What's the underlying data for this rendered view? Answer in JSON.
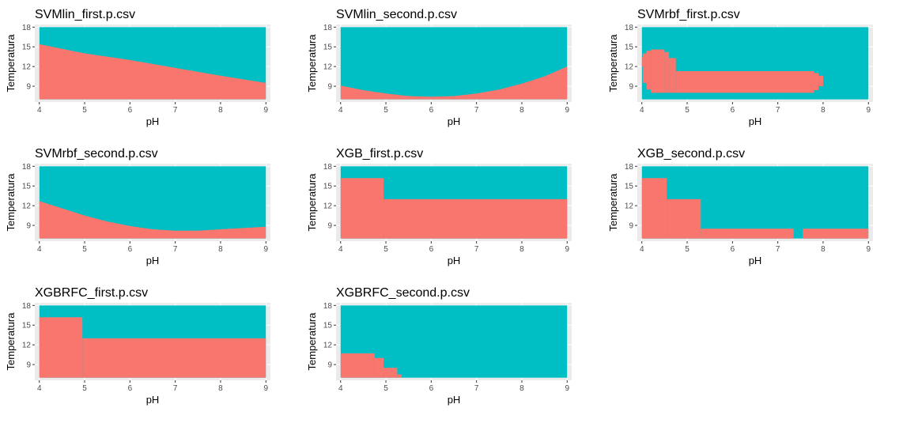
{
  "colors": {
    "class_low": "#F8766D",
    "class_high": "#00BFC4",
    "panel_bg": "#EBEBEB",
    "grid_major": "#FFFFFF",
    "text_dark": "#000000",
    "tick_text": "#4D4D4D"
  },
  "chart_data": [
    {
      "type": "heatmap",
      "title": "SVMlin_first.p.csv",
      "xlabel": "pH",
      "ylabel": "Temperatura",
      "xlim": [
        3.9,
        9.1
      ],
      "ylim": [
        6.6,
        18.4
      ],
      "data_range": {
        "x": [
          4,
          9
        ],
        "y": [
          7,
          18
        ]
      },
      "xticks": [
        4,
        5,
        6,
        7,
        8,
        9
      ],
      "yticks": [
        9,
        12,
        15,
        18
      ],
      "boundary": [
        [
          4,
          15.4
        ],
        [
          5,
          14.0
        ],
        [
          6,
          13.0
        ],
        [
          7,
          11.8
        ],
        [
          8,
          10.6
        ],
        [
          9,
          9.5
        ]
      ]
    },
    {
      "type": "heatmap",
      "title": "SVMlin_second.p.csv",
      "xlabel": "pH",
      "ylabel": "Temperatura",
      "xlim": [
        3.9,
        9.1
      ],
      "ylim": [
        6.6,
        18.4
      ],
      "data_range": {
        "x": [
          4,
          9
        ],
        "y": [
          7,
          18
        ]
      },
      "xticks": [
        4,
        5,
        6,
        7,
        8,
        9
      ],
      "yticks": [
        9,
        12,
        15,
        18
      ],
      "boundary": [
        [
          4,
          9.1
        ],
        [
          4.5,
          8.4
        ],
        [
          5,
          7.9
        ],
        [
          5.5,
          7.5
        ],
        [
          6,
          7.4
        ],
        [
          6.5,
          7.5
        ],
        [
          7,
          7.9
        ],
        [
          7.5,
          8.5
        ],
        [
          8,
          9.4
        ],
        [
          8.5,
          10.5
        ],
        [
          9,
          12.0
        ]
      ]
    },
    {
      "type": "heatmap",
      "title": "SVMrbf_first.p.csv",
      "xlabel": "pH",
      "ylabel": "Temperatura",
      "xlim": [
        3.9,
        9.1
      ],
      "ylim": [
        6.6,
        18.4
      ],
      "data_range": {
        "x": [
          4,
          9
        ],
        "y": [
          7,
          18
        ]
      },
      "xticks": [
        4,
        5,
        6,
        7,
        8,
        9
      ],
      "yticks": [
        9,
        12,
        15,
        18
      ],
      "regions": [
        {
          "x": [
            4.0,
            4.02
          ],
          "y": [
            12.0,
            13.5
          ]
        },
        {
          "x": [
            4.02,
            4.1
          ],
          "y": [
            9.5,
            14.0
          ]
        },
        {
          "x": [
            4.1,
            4.2
          ],
          "y": [
            8.5,
            14.4
          ]
        },
        {
          "x": [
            4.2,
            4.5
          ],
          "y": [
            8.0,
            14.6
          ]
        },
        {
          "x": [
            4.5,
            4.6
          ],
          "y": [
            8.0,
            14.2
          ]
        },
        {
          "x": [
            4.6,
            4.75
          ],
          "y": [
            8.0,
            13.3
          ]
        },
        {
          "x": [
            4.75,
            7.8
          ],
          "y": [
            8.0,
            11.3
          ]
        },
        {
          "x": [
            7.8,
            7.9
          ],
          "y": [
            8.4,
            11.0
          ]
        },
        {
          "x": [
            7.9,
            8.0
          ],
          "y": [
            9.0,
            10.6
          ]
        }
      ]
    },
    {
      "type": "heatmap",
      "title": "SVMrbf_second.p.csv",
      "xlabel": "pH",
      "ylabel": "Temperatura",
      "xlim": [
        3.9,
        9.1
      ],
      "ylim": [
        6.6,
        18.4
      ],
      "data_range": {
        "x": [
          4,
          9
        ],
        "y": [
          7,
          18
        ]
      },
      "xticks": [
        4,
        5,
        6,
        7,
        8,
        9
      ],
      "yticks": [
        9,
        12,
        15,
        18
      ],
      "boundary": [
        [
          4,
          12.7
        ],
        [
          4.5,
          11.6
        ],
        [
          5,
          10.5
        ],
        [
          5.5,
          9.6
        ],
        [
          6,
          8.9
        ],
        [
          6.5,
          8.4
        ],
        [
          7,
          8.2
        ],
        [
          7.5,
          8.2
        ],
        [
          8,
          8.4
        ],
        [
          8.5,
          8.6
        ],
        [
          9,
          8.8
        ]
      ]
    },
    {
      "type": "heatmap",
      "title": "XGB_first.p.csv",
      "xlabel": "pH",
      "ylabel": "Temperatura",
      "xlim": [
        3.9,
        9.1
      ],
      "ylim": [
        6.6,
        18.4
      ],
      "data_range": {
        "x": [
          4,
          9
        ],
        "y": [
          7,
          18
        ]
      },
      "xticks": [
        4,
        5,
        6,
        7,
        8,
        9
      ],
      "yticks": [
        9,
        12,
        15,
        18
      ],
      "regions": [
        {
          "x": [
            4.0,
            4.95
          ],
          "y": [
            7,
            16.2
          ]
        },
        {
          "x": [
            4.95,
            9.0
          ],
          "y": [
            7,
            13.0
          ]
        }
      ]
    },
    {
      "type": "heatmap",
      "title": "XGB_second.p.csv",
      "xlabel": "pH",
      "ylabel": "Temperatura",
      "xlim": [
        3.9,
        9.1
      ],
      "ylim": [
        6.6,
        18.4
      ],
      "data_range": {
        "x": [
          4,
          9
        ],
        "y": [
          7,
          18
        ]
      },
      "xticks": [
        4,
        5,
        6,
        7,
        8,
        9
      ],
      "yticks": [
        9,
        12,
        15,
        18
      ],
      "regions": [
        {
          "x": [
            4.0,
            4.55
          ],
          "y": [
            7,
            16.2
          ]
        },
        {
          "x": [
            4.55,
            5.3
          ],
          "y": [
            7,
            13.0
          ]
        },
        {
          "x": [
            5.3,
            7.35
          ],
          "y": [
            7,
            8.5
          ]
        },
        {
          "x": [
            7.55,
            9.0
          ],
          "y": [
            7,
            8.5
          ]
        }
      ]
    },
    {
      "type": "heatmap",
      "title": "XGBRFC_first.p.csv",
      "xlabel": "pH",
      "ylabel": "Temperatura",
      "xlim": [
        3.9,
        9.1
      ],
      "ylim": [
        6.6,
        18.4
      ],
      "data_range": {
        "x": [
          4,
          9
        ],
        "y": [
          7,
          18
        ]
      },
      "xticks": [
        4,
        5,
        6,
        7,
        8,
        9
      ],
      "yticks": [
        9,
        12,
        15,
        18
      ],
      "regions": [
        {
          "x": [
            4.0,
            4.95
          ],
          "y": [
            7,
            16.2
          ]
        },
        {
          "x": [
            4.95,
            9.0
          ],
          "y": [
            7,
            13.0
          ]
        }
      ]
    },
    {
      "type": "heatmap",
      "title": "XGBRFC_second.p.csv",
      "xlabel": "pH",
      "ylabel": "Temperatura",
      "xlim": [
        3.9,
        9.1
      ],
      "ylim": [
        6.6,
        18.4
      ],
      "data_range": {
        "x": [
          4,
          9
        ],
        "y": [
          7,
          18
        ]
      },
      "xticks": [
        4,
        5,
        6,
        7,
        8,
        9
      ],
      "yticks": [
        9,
        12,
        15,
        18
      ],
      "regions": [
        {
          "x": [
            4.0,
            4.75
          ],
          "y": [
            7,
            10.7
          ]
        },
        {
          "x": [
            4.75,
            4.95
          ],
          "y": [
            7,
            10.0
          ]
        },
        {
          "x": [
            4.95,
            5.25
          ],
          "y": [
            7,
            8.5
          ]
        },
        {
          "x": [
            5.25,
            5.35
          ],
          "y": [
            7,
            7.5
          ]
        }
      ]
    }
  ]
}
